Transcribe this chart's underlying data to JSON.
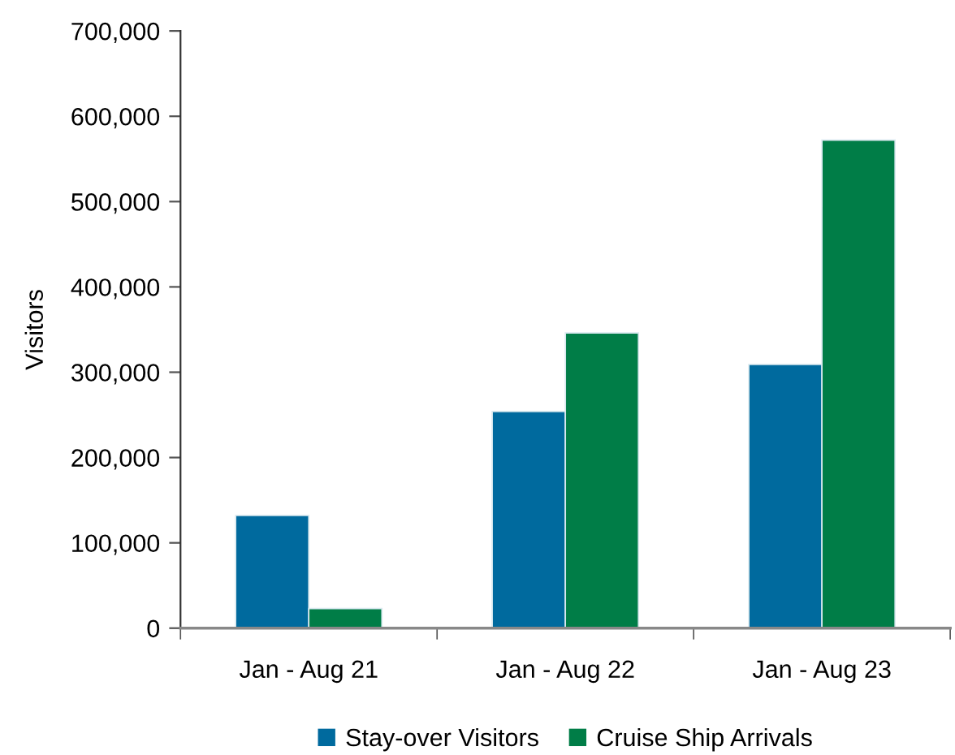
{
  "chart_data": {
    "type": "bar",
    "categories": [
      "Jan - Aug 21",
      "Jan - Aug 22",
      "Jan - Aug 23"
    ],
    "series": [
      {
        "name": "Stay-over Visitors",
        "color": "#006a9e",
        "values": [
          132000,
          254000,
          309000
        ]
      },
      {
        "name": "Cruise Ship Arrivals",
        "color": "#007d47",
        "values": [
          23000,
          346000,
          572000
        ]
      }
    ],
    "ylabel": "Visitors",
    "ylim": [
      0,
      700000
    ],
    "yticks": [
      {
        "value": 0,
        "label": "0"
      },
      {
        "value": 100000,
        "label": "100,000"
      },
      {
        "value": 200000,
        "label": "200,000"
      },
      {
        "value": 300000,
        "label": "300,000"
      },
      {
        "value": 400000,
        "label": "400,000"
      },
      {
        "value": 500000,
        "label": "500,000"
      },
      {
        "value": 600000,
        "label": "600,000"
      },
      {
        "value": 700000,
        "label": "700,000"
      }
    ],
    "legend": "bottom"
  }
}
